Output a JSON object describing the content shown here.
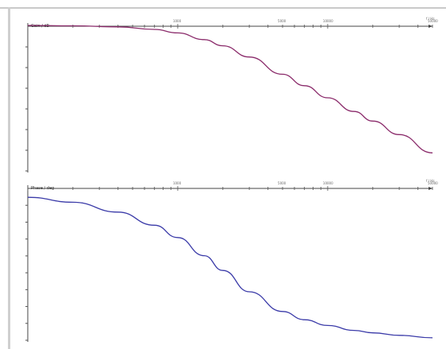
{
  "chart_data": [
    {
      "type": "line",
      "panel": "magnitude",
      "title": "",
      "ylabel": "Gain / dB",
      "xlabel": "f / Hz",
      "x_scale": "log",
      "xlim": [
        100,
        50000
      ],
      "x_ticks": [
        1000,
        5000,
        10000,
        50000
      ],
      "x_tick_labels": [
        "1000",
        "5000",
        "10000",
        "50000"
      ],
      "ylim": [
        -70,
        0
      ],
      "y_tick_count": 7,
      "grid": false,
      "series": [
        {
          "name": "",
          "color": "#8a2a6a",
          "x": [
            100,
            200,
            400,
            700,
            1000,
            1500,
            2000,
            3000,
            5000,
            7000,
            10000,
            15000,
            20000,
            30000,
            50000
          ],
          "y": [
            0,
            -0.2,
            -0.7,
            -1.9,
            -3.6,
            -6.8,
            -9.8,
            -15.2,
            -23.5,
            -29.0,
            -34.8,
            -41.4,
            -46.0,
            -52.5,
            -61.3
          ]
        }
      ]
    },
    {
      "type": "line",
      "panel": "phase",
      "title": "",
      "ylabel": "Phase / deg",
      "xlabel": "f / Hz",
      "x_scale": "log",
      "xlim": [
        100,
        50000
      ],
      "x_ticks": [
        1000,
        5000,
        10000,
        50000
      ],
      "x_tick_labels": [
        "1000",
        "5000",
        "10000",
        "50000"
      ],
      "ylim": [
        -180,
        0
      ],
      "y_tick_count": 9,
      "grid": false,
      "series": [
        {
          "name": "",
          "color": "#3a3aa8",
          "x": [
            100,
            200,
            400,
            700,
            1000,
            1500,
            2000,
            3000,
            5000,
            7000,
            10000,
            15000,
            20000,
            30000,
            50000
          ],
          "y": [
            -6,
            -12,
            -24,
            -40,
            -55,
            -77,
            -95,
            -121,
            -145,
            -155,
            -162,
            -168,
            -171,
            -174,
            -177
          ]
        }
      ]
    }
  ]
}
